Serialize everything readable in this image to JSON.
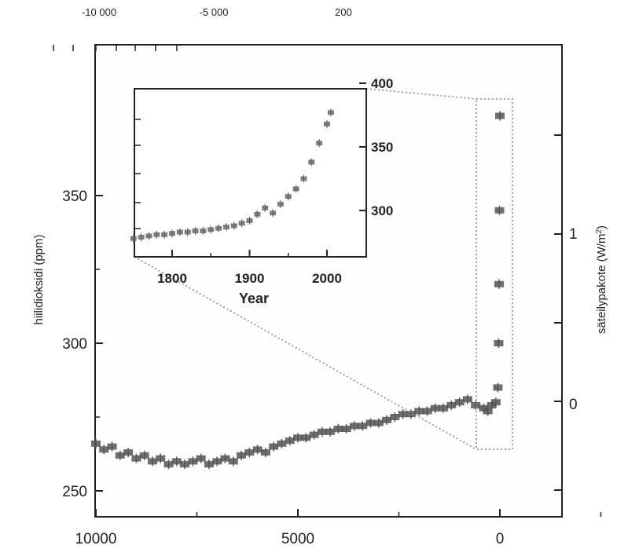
{
  "chart_data": [
    {
      "type": "scatter",
      "top_axis_labels": [
        "-10 000",
        "-5 000",
        "200"
      ],
      "xlabel": "",
      "x_reversed": true,
      "xlim": [
        10000,
        -3000
      ],
      "ylabel": "hiilidioksidi (ppm)",
      "ylim": [
        242,
        398
      ],
      "y_ticks": [
        250,
        300,
        350
      ],
      "y_tick_labels": [
        "250",
        "300",
        "350"
      ],
      "x_ticks": [
        10000,
        5000,
        0
      ],
      "x_tick_labels": [
        "10000",
        "5000",
        "0"
      ],
      "right_axis": {
        "label": "säteilypakote (W/m²)",
        "label_base": "säteilypakote (W/m",
        "label_sup": "2",
        "label_end": ")",
        "tick_labels": [
          "1",
          "0"
        ]
      },
      "grid": false,
      "series": [
        {
          "color": "#555555",
          "points": [
            [
              10000,
              266
            ],
            [
              9800,
              264
            ],
            [
              9600,
              265
            ],
            [
              9400,
              262
            ],
            [
              9200,
              263
            ],
            [
              9000,
              261
            ],
            [
              8800,
              262
            ],
            [
              8600,
              260
            ],
            [
              8400,
              261
            ],
            [
              8200,
              259
            ],
            [
              8000,
              260
            ],
            [
              7800,
              259
            ],
            [
              7600,
              260
            ],
            [
              7400,
              261
            ],
            [
              7200,
              259
            ],
            [
              7000,
              260
            ],
            [
              6800,
              261
            ],
            [
              6600,
              260
            ],
            [
              6400,
              262
            ],
            [
              6200,
              263
            ],
            [
              6000,
              264
            ],
            [
              5800,
              263
            ],
            [
              5600,
              265
            ],
            [
              5400,
              266
            ],
            [
              5200,
              267
            ],
            [
              5000,
              268
            ],
            [
              4800,
              268
            ],
            [
              4600,
              269
            ],
            [
              4400,
              270
            ],
            [
              4200,
              270
            ],
            [
              4000,
              271
            ],
            [
              3800,
              271
            ],
            [
              3600,
              272
            ],
            [
              3400,
              272
            ],
            [
              3200,
              273
            ],
            [
              3000,
              273
            ],
            [
              2800,
              274
            ],
            [
              2600,
              275
            ],
            [
              2400,
              276
            ],
            [
              2200,
              276
            ],
            [
              2000,
              277
            ],
            [
              1800,
              277
            ],
            [
              1600,
              278
            ],
            [
              1400,
              278
            ],
            [
              1200,
              279
            ],
            [
              1000,
              280
            ],
            [
              800,
              281
            ],
            [
              600,
              279
            ],
            [
              400,
              278
            ],
            [
              300,
              277
            ],
            [
              200,
              279
            ],
            [
              100,
              280
            ],
            [
              50,
              285
            ],
            [
              30,
              300
            ],
            [
              20,
              320
            ],
            [
              10,
              345
            ],
            [
              0,
              377
            ]
          ]
        }
      ]
    },
    {
      "type": "scatter",
      "xlabel": "Year",
      "ylabel": "",
      "xlim": [
        1750,
        2050
      ],
      "ylim": [
        270,
        400
      ],
      "x_ticks": [
        1800,
        1900,
        2000
      ],
      "x_tick_labels": [
        "1800",
        "1900",
        "2000"
      ],
      "y_ticks": [
        300,
        350,
        400
      ],
      "y_tick_labels": [
        "300",
        "350",
        "400"
      ],
      "grid": false,
      "series": [
        {
          "color": "#666666",
          "points": [
            [
              1750,
              278
            ],
            [
              1760,
              279
            ],
            [
              1770,
              280
            ],
            [
              1780,
              281
            ],
            [
              1790,
              281
            ],
            [
              1800,
              282
            ],
            [
              1810,
              283
            ],
            [
              1820,
              283
            ],
            [
              1830,
              284
            ],
            [
              1840,
              284
            ],
            [
              1850,
              285
            ],
            [
              1860,
              286
            ],
            [
              1870,
              287
            ],
            [
              1880,
              288
            ],
            [
              1890,
              290
            ],
            [
              1900,
              292
            ],
            [
              1910,
              297
            ],
            [
              1920,
              302
            ],
            [
              1930,
              298
            ],
            [
              1940,
              305
            ],
            [
              1950,
              311
            ],
            [
              1960,
              317
            ],
            [
              1970,
              325
            ],
            [
              1980,
              338
            ],
            [
              1990,
              353
            ],
            [
              2000,
              368
            ],
            [
              2005,
              377
            ]
          ]
        }
      ]
    }
  ]
}
